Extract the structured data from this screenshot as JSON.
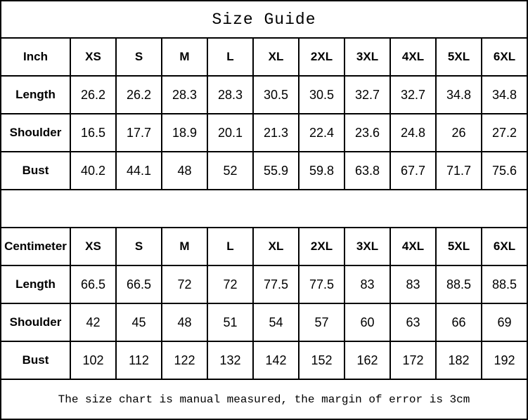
{
  "title": "Size Guide",
  "footer_note": "The size chart is manual measured, the margin of error is 3cm",
  "chart_data": [
    {
      "type": "table",
      "title": "Size Guide",
      "unit_label": "Inch",
      "size_columns": [
        "XS",
        "S",
        "M",
        "L",
        "XL",
        "2XL",
        "3XL",
        "4XL",
        "5XL",
        "6XL"
      ],
      "rows": [
        {
          "label": "Length",
          "values": [
            26.2,
            26.2,
            28.3,
            28.3,
            30.5,
            30.5,
            32.7,
            32.7,
            34.8,
            34.8
          ]
        },
        {
          "label": "Shoulder",
          "values": [
            16.5,
            17.7,
            18.9,
            20.1,
            21.3,
            22.4,
            23.6,
            24.8,
            26,
            27.2
          ]
        },
        {
          "label": "Bust",
          "values": [
            40.2,
            44.1,
            48,
            52,
            55.9,
            59.8,
            63.8,
            67.7,
            71.7,
            75.6
          ]
        }
      ]
    },
    {
      "type": "table",
      "title": "Size Guide",
      "unit_label": "Centimeter",
      "size_columns": [
        "XS",
        "S",
        "M",
        "L",
        "XL",
        "2XL",
        "3XL",
        "4XL",
        "5XL",
        "6XL"
      ],
      "rows": [
        {
          "label": "Length",
          "values": [
            66.5,
            66.5,
            72,
            72,
            77.5,
            77.5,
            83,
            83,
            88.5,
            88.5
          ]
        },
        {
          "label": "Shoulder",
          "values": [
            42,
            45,
            48,
            51,
            54,
            57,
            60,
            63,
            66,
            69
          ]
        },
        {
          "label": "Bust",
          "values": [
            102,
            112,
            122,
            132,
            142,
            152,
            162,
            172,
            182,
            192
          ]
        }
      ]
    }
  ],
  "colors": {
    "grid_line": "#000000",
    "background": "#ffffff",
    "text": "#000000"
  }
}
